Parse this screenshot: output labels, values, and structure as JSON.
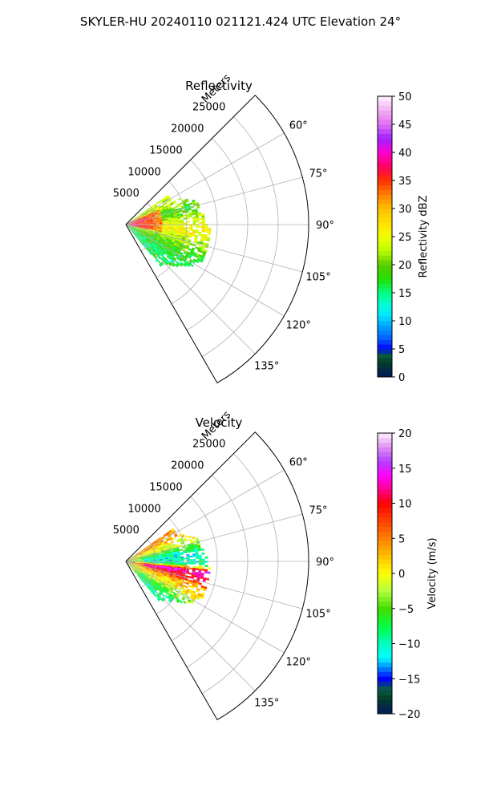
{
  "page": {
    "suptitle": "SKYLER-HU  20240110  021121.424 UTC Elevation 24°"
  },
  "chart_data": [
    {
      "type": "polar-sector",
      "title": "Reflectivity",
      "radial_label": "Meters",
      "theta_range_deg": [
        45,
        150
      ],
      "r_max": 30000,
      "r_ticks": [
        5000,
        10000,
        15000,
        20000,
        25000
      ],
      "r_tick_labels": [
        "5000",
        "10000",
        "15000",
        "20000",
        "25000"
      ],
      "theta_ticks": [
        60,
        75,
        90,
        105,
        120,
        135
      ],
      "theta_tick_labels": [
        "60°",
        "75°",
        "90°",
        "105°",
        "120°",
        "135°"
      ],
      "grid": true,
      "colorbar": {
        "label": "Reflectivity dBZ",
        "range": [
          0,
          50
        ],
        "ticks": [
          0,
          5,
          10,
          15,
          20,
          25,
          30,
          35,
          40,
          45,
          50
        ],
        "tick_labels": [
          "0",
          "5",
          "10",
          "15",
          "20",
          "25",
          "30",
          "35",
          "40",
          "45",
          "50"
        ]
      },
      "data_coverage": {
        "theta_deg": [
          55,
          140
        ],
        "r_max": 15000
      },
      "value_profile": [
        {
          "theta": 62,
          "r_max": 8500,
          "value": 23
        },
        {
          "theta": 68,
          "r_max": 11000,
          "value": 22
        },
        {
          "theta": 74,
          "r_max": 12500,
          "value": 18
        },
        {
          "theta": 80,
          "r_max": 12500,
          "value": 20
        },
        {
          "theta": 86,
          "r_max": 13000,
          "value": 24
        },
        {
          "theta": 92,
          "r_max": 13500,
          "value": 26
        },
        {
          "theta": 98,
          "r_max": 14000,
          "value": 26
        },
        {
          "theta": 104,
          "r_max": 14000,
          "value": 22
        },
        {
          "theta": 110,
          "r_max": 14000,
          "value": 20
        },
        {
          "theta": 116,
          "r_max": 13500,
          "value": 18
        },
        {
          "theta": 122,
          "r_max": 12500,
          "value": 17
        },
        {
          "theta": 128,
          "r_max": 11000,
          "value": 16
        },
        {
          "theta": 134,
          "r_max": 9000,
          "value": 16
        }
      ],
      "core": {
        "theta_deg": [
          65,
          100
        ],
        "r_max": 6000,
        "value": 38
      }
    },
    {
      "type": "polar-sector",
      "title": "Velocity",
      "radial_label": "Meters",
      "theta_range_deg": [
        45,
        150
      ],
      "r_max": 30000,
      "r_ticks": [
        5000,
        10000,
        15000,
        20000,
        25000
      ],
      "r_tick_labels": [
        "5000",
        "10000",
        "15000",
        "20000",
        "25000"
      ],
      "theta_ticks": [
        60,
        75,
        90,
        105,
        120,
        135
      ],
      "theta_tick_labels": [
        "60°",
        "75°",
        "90°",
        "105°",
        "120°",
        "135°"
      ],
      "grid": true,
      "colorbar": {
        "label": "Velocity (m/s)",
        "range": [
          -20,
          20
        ],
        "ticks": [
          -20,
          -15,
          -10,
          -5,
          0,
          5,
          10,
          15,
          20
        ],
        "tick_labels": [
          "−20",
          "−15",
          "−10",
          "−5",
          "0",
          "5",
          "10",
          "15",
          "20"
        ]
      },
      "data_coverage": {
        "theta_deg": [
          55,
          140
        ],
        "r_max": 15000
      },
      "value_profile": [
        {
          "theta": 62,
          "r_max": 9500,
          "value": 4
        },
        {
          "theta": 68,
          "r_max": 11000,
          "value": 0
        },
        {
          "theta": 74,
          "r_max": 12500,
          "value": -2
        },
        {
          "theta": 80,
          "r_max": 12500,
          "value": -9
        },
        {
          "theta": 86,
          "r_max": 13000,
          "value": -11
        },
        {
          "theta": 92,
          "r_max": 13500,
          "value": -10
        },
        {
          "theta": 98,
          "r_max": 14000,
          "value": 14
        },
        {
          "theta": 104,
          "r_max": 14000,
          "value": 10
        },
        {
          "theta": 110,
          "r_max": 14000,
          "value": 3
        },
        {
          "theta": 116,
          "r_max": 13500,
          "value": 1
        },
        {
          "theta": 122,
          "r_max": 12500,
          "value": -3
        },
        {
          "theta": 128,
          "r_max": 11000,
          "value": -6
        },
        {
          "theta": 134,
          "r_max": 9000,
          "value": -9
        }
      ]
    }
  ]
}
